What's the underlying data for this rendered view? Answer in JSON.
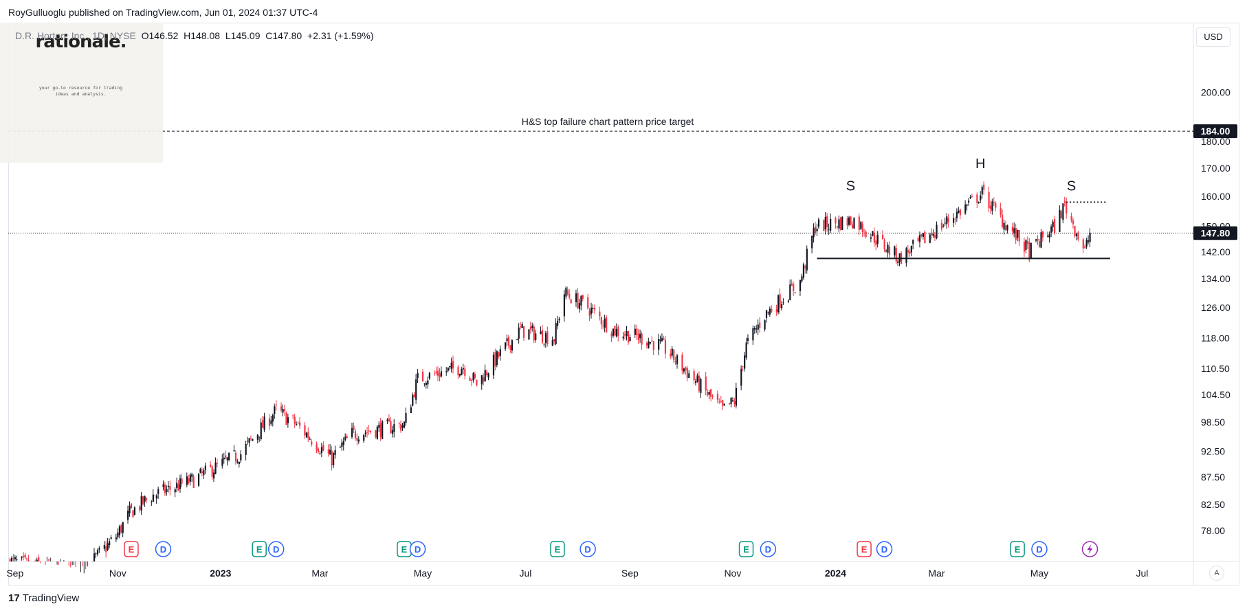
{
  "header": {
    "published": "RoyGulluoglu published on TradingView.com, Jun 01, 2024 01:37 UTC-4"
  },
  "legend": {
    "symbol": "D.R. Horton, Inc., 1D, NYSE",
    "open_label": "O",
    "open": "146.52",
    "high_label": "H",
    "high": "148.08",
    "low_label": "L",
    "low": "145.09",
    "close_label": "C",
    "close": "147.80",
    "change": "+2.31 (+1.59%)"
  },
  "logo": {
    "name": "rationale.",
    "tagline_1": "your go-to resource for trading",
    "tagline_2": "ideas and analysis."
  },
  "currency": "USD",
  "auto_label": "A",
  "footer": {
    "brand": "TradingView"
  },
  "colors": {
    "up": "#131722",
    "down": "#f23645",
    "earnings": "#089981",
    "earnings_miss": "#f23645",
    "dividend": "#2962ff",
    "split": "#9c27b0"
  },
  "chart_data": {
    "type": "candlestick",
    "symbol": "D.R. Horton, Inc.",
    "interval": "1D",
    "exchange": "NYSE",
    "y_scale": "log",
    "ylim": [
      73,
      232
    ],
    "y_ticks": [
      "200.00",
      "180.00",
      "170.00",
      "160.00",
      "150.00",
      "142.00",
      "134.00",
      "126.00",
      "118.00",
      "110.50",
      "104.50",
      "98.50",
      "92.50",
      "87.50",
      "82.50",
      "78.00"
    ],
    "x_ticks": [
      {
        "label": "Sep",
        "date": "2022-09-01",
        "bold": false
      },
      {
        "label": "Nov",
        "date": "2022-11-01",
        "bold": false
      },
      {
        "label": "2023",
        "date": "2023-01-01",
        "bold": true
      },
      {
        "label": "Mar",
        "date": "2023-03-01",
        "bold": false
      },
      {
        "label": "May",
        "date": "2023-05-01",
        "bold": false
      },
      {
        "label": "Jul",
        "date": "2023-07-01",
        "bold": false
      },
      {
        "label": "Sep",
        "date": "2023-09-01",
        "bold": false
      },
      {
        "label": "Nov",
        "date": "2023-11-01",
        "bold": false
      },
      {
        "label": "2024",
        "date": "2024-01-01",
        "bold": true
      },
      {
        "label": "Mar",
        "date": "2024-03-01",
        "bold": false
      },
      {
        "label": "May",
        "date": "2024-05-01",
        "bold": false
      },
      {
        "label": "Jul",
        "date": "2024-07-01",
        "bold": false
      }
    ],
    "x_range": [
      "2022-08-28",
      "2024-07-31"
    ],
    "price_path": [
      [
        "2022-08-29",
        73
      ],
      [
        "2022-10-10",
        71
      ],
      [
        "2022-10-31",
        77
      ],
      [
        "2022-11-08",
        81
      ],
      [
        "2022-11-21",
        84
      ],
      [
        "2022-12-16",
        87
      ],
      [
        "2023-01-13",
        92
      ],
      [
        "2023-02-03",
        101
      ],
      [
        "2023-02-15",
        98
      ],
      [
        "2023-03-08",
        91
      ],
      [
        "2023-03-20",
        96
      ],
      [
        "2023-04-20",
        98
      ],
      [
        "2023-04-28",
        108
      ],
      [
        "2023-05-25",
        111
      ],
      [
        "2023-06-02",
        107
      ],
      [
        "2023-06-28",
        120
      ],
      [
        "2023-07-18",
        118
      ],
      [
        "2023-07-24",
        130
      ],
      [
        "2023-08-07",
        126
      ],
      [
        "2023-08-22",
        120
      ],
      [
        "2023-09-08",
        118
      ],
      [
        "2023-09-20",
        116
      ],
      [
        "2023-10-16",
        105
      ],
      [
        "2023-10-26",
        101
      ],
      [
        "2023-11-02",
        103
      ],
      [
        "2023-11-09",
        116
      ],
      [
        "2023-11-20",
        124
      ],
      [
        "2023-12-11",
        133
      ],
      [
        "2023-12-20",
        150
      ],
      [
        "2024-01-12",
        152
      ],
      [
        "2024-01-25",
        146
      ],
      [
        "2024-02-08",
        140
      ],
      [
        "2024-02-23",
        146
      ],
      [
        "2024-03-15",
        155
      ],
      [
        "2024-03-28",
        161
      ],
      [
        "2024-04-09",
        152
      ],
      [
        "2024-04-25",
        142
      ],
      [
        "2024-05-10",
        150
      ],
      [
        "2024-05-16",
        157
      ],
      [
        "2024-05-28",
        142
      ],
      [
        "2024-05-31",
        147.8
      ]
    ],
    "current_price": {
      "value": 147.8,
      "label": "147.80"
    },
    "price_target": {
      "value": 184.0,
      "label": "184.00",
      "text": "H&S top failure chart pattern price target"
    },
    "neckline": {
      "value": 140.0,
      "from": "2023-12-21",
      "to": "2024-06-12"
    },
    "shoulder_line": {
      "value": 158.0,
      "from": "2024-05-17",
      "to": "2024-06-10"
    },
    "pattern_labels": [
      {
        "text": "S",
        "date": "2024-01-10",
        "value": 162
      },
      {
        "text": "H",
        "date": "2024-03-27",
        "value": 170
      },
      {
        "text": "S",
        "date": "2024-05-20",
        "value": 162
      }
    ],
    "events": [
      {
        "type": "E",
        "date": "2022-11-09",
        "color": "#f23645"
      },
      {
        "type": "D",
        "date": "2022-11-28",
        "color": "#2962ff"
      },
      {
        "type": "E",
        "date": "2023-01-24",
        "color": "#089981"
      },
      {
        "type": "D",
        "date": "2023-02-03",
        "color": "#2962ff"
      },
      {
        "type": "E",
        "date": "2023-04-20",
        "color": "#089981"
      },
      {
        "type": "D",
        "date": "2023-04-28",
        "color": "#2962ff"
      },
      {
        "type": "E",
        "date": "2023-07-20",
        "color": "#089981"
      },
      {
        "type": "D",
        "date": "2023-08-07",
        "color": "#2962ff"
      },
      {
        "type": "E",
        "date": "2023-11-09",
        "color": "#089981"
      },
      {
        "type": "D",
        "date": "2023-11-22",
        "color": "#2962ff"
      },
      {
        "type": "E",
        "date": "2024-01-18",
        "color": "#f23645"
      },
      {
        "type": "D",
        "date": "2024-01-30",
        "color": "#2962ff"
      },
      {
        "type": "E",
        "date": "2024-04-18",
        "color": "#089981"
      },
      {
        "type": "D",
        "date": "2024-05-01",
        "color": "#2962ff"
      },
      {
        "type": "split",
        "date": "2024-05-31",
        "color": "#9c27b0"
      }
    ]
  }
}
